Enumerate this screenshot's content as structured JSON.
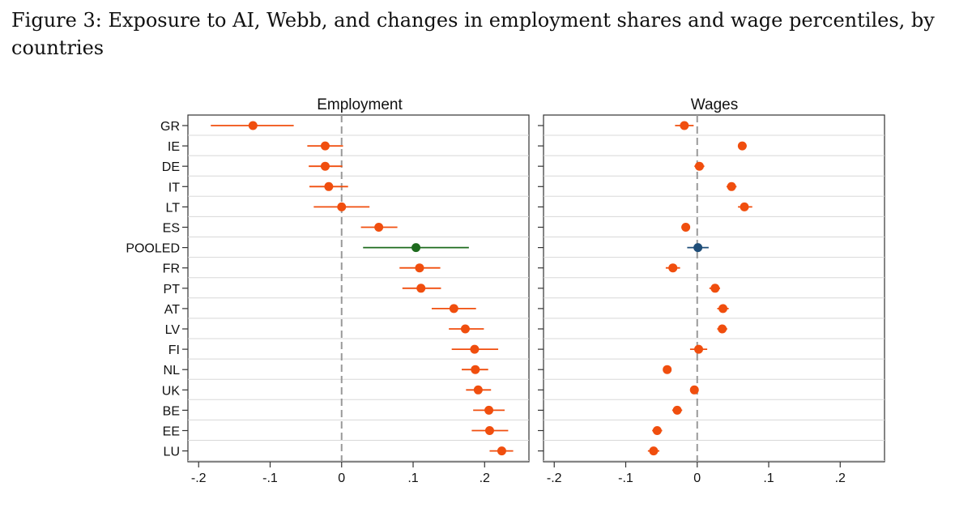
{
  "figure": {
    "caption": "Figure 3: Exposure to AI, Webb, and changes in employment shares and wage percentiles, by countries"
  },
  "colors": {
    "country": "#f04e0e",
    "pooled_employment": "#1e6b1e",
    "pooled_wages": "#1f4e79",
    "frame": "#333333",
    "zero_line": "#999999",
    "gridline": "#d8d8d8"
  },
  "chart_data": [
    {
      "type": "scatter",
      "title": "Employment",
      "categories": [
        "GR",
        "IE",
        "DE",
        "IT",
        "LT",
        "ES",
        "POOLED",
        "FR",
        "PT",
        "AT",
        "LV",
        "FI",
        "NL",
        "UK",
        "BE",
        "EE",
        "LU"
      ],
      "x_ticks": [
        "-.2",
        "-.1",
        "0",
        ".1",
        ".2"
      ],
      "x_tick_values": [
        -0.2,
        -0.1,
        0,
        0.1,
        0.2
      ],
      "xlim": [
        -0.215,
        0.262
      ],
      "reference_line_x": 0,
      "points": [
        {
          "label": "GR",
          "estimate": -0.124,
          "ci": [
            -0.183,
            -0.067
          ]
        },
        {
          "label": "IE",
          "estimate": -0.023,
          "ci": [
            -0.048,
            0.002
          ]
        },
        {
          "label": "DE",
          "estimate": -0.023,
          "ci": [
            -0.046,
            0.001
          ]
        },
        {
          "label": "IT",
          "estimate": -0.018,
          "ci": [
            -0.045,
            0.009
          ]
        },
        {
          "label": "LT",
          "estimate": 0.0,
          "ci": [
            -0.039,
            0.039
          ]
        },
        {
          "label": "ES",
          "estimate": 0.052,
          "ci": [
            0.027,
            0.078
          ]
        },
        {
          "label": "POOLED",
          "estimate": 0.104,
          "ci": [
            0.03,
            0.178
          ]
        },
        {
          "label": "FR",
          "estimate": 0.109,
          "ci": [
            0.081,
            0.138
          ]
        },
        {
          "label": "PT",
          "estimate": 0.111,
          "ci": [
            0.085,
            0.139
          ]
        },
        {
          "label": "AT",
          "estimate": 0.157,
          "ci": [
            0.126,
            0.188
          ]
        },
        {
          "label": "LV",
          "estimate": 0.173,
          "ci": [
            0.15,
            0.199
          ]
        },
        {
          "label": "FI",
          "estimate": 0.186,
          "ci": [
            0.154,
            0.219
          ]
        },
        {
          "label": "NL",
          "estimate": 0.187,
          "ci": [
            0.168,
            0.205
          ]
        },
        {
          "label": "UK",
          "estimate": 0.191,
          "ci": [
            0.174,
            0.209
          ]
        },
        {
          "label": "BE",
          "estimate": 0.206,
          "ci": [
            0.184,
            0.228
          ]
        },
        {
          "label": "EE",
          "estimate": 0.207,
          "ci": [
            0.182,
            0.233
          ]
        },
        {
          "label": "LU",
          "estimate": 0.224,
          "ci": [
            0.207,
            0.24
          ]
        }
      ]
    },
    {
      "type": "scatter",
      "title": "Wages",
      "categories": [
        "GR",
        "IE",
        "DE",
        "IT",
        "LT",
        "ES",
        "POOLED",
        "FR",
        "PT",
        "AT",
        "LV",
        "FI",
        "NL",
        "UK",
        "BE",
        "EE",
        "LU"
      ],
      "x_ticks": [
        "-.2",
        "-.1",
        "0",
        ".1",
        ".2"
      ],
      "x_tick_values": [
        -0.2,
        -0.1,
        0,
        0.1,
        0.2
      ],
      "xlim": [
        -0.215,
        0.262
      ],
      "reference_line_x": 0,
      "points": [
        {
          "label": "GR",
          "estimate": -0.018,
          "ci": [
            -0.031,
            -0.005
          ]
        },
        {
          "label": "IE",
          "estimate": 0.063,
          "ci": [
            0.057,
            0.069
          ]
        },
        {
          "label": "DE",
          "estimate": 0.003,
          "ci": [
            -0.004,
            0.01
          ]
        },
        {
          "label": "IT",
          "estimate": 0.048,
          "ci": [
            0.041,
            0.055
          ]
        },
        {
          "label": "LT",
          "estimate": 0.066,
          "ci": [
            0.057,
            0.077
          ]
        },
        {
          "label": "ES",
          "estimate": -0.016,
          "ci": [
            -0.022,
            -0.01
          ]
        },
        {
          "label": "POOLED",
          "estimate": 0.001,
          "ci": [
            -0.014,
            0.016
          ]
        },
        {
          "label": "FR",
          "estimate": -0.034,
          "ci": [
            -0.044,
            -0.024
          ]
        },
        {
          "label": "PT",
          "estimate": 0.025,
          "ci": [
            0.017,
            0.032
          ]
        },
        {
          "label": "AT",
          "estimate": 0.036,
          "ci": [
            0.028,
            0.044
          ]
        },
        {
          "label": "LV",
          "estimate": 0.035,
          "ci": [
            0.028,
            0.042
          ]
        },
        {
          "label": "FI",
          "estimate": 0.002,
          "ci": [
            -0.01,
            0.014
          ]
        },
        {
          "label": "NL",
          "estimate": -0.042,
          "ci": [
            -0.047,
            -0.037
          ]
        },
        {
          "label": "UK",
          "estimate": -0.004,
          "ci": [
            -0.009,
            0.001
          ]
        },
        {
          "label": "BE",
          "estimate": -0.028,
          "ci": [
            -0.035,
            -0.021
          ]
        },
        {
          "label": "EE",
          "estimate": -0.056,
          "ci": [
            -0.063,
            -0.049
          ]
        },
        {
          "label": "LU",
          "estimate": -0.061,
          "ci": [
            -0.069,
            -0.053
          ]
        }
      ]
    }
  ]
}
